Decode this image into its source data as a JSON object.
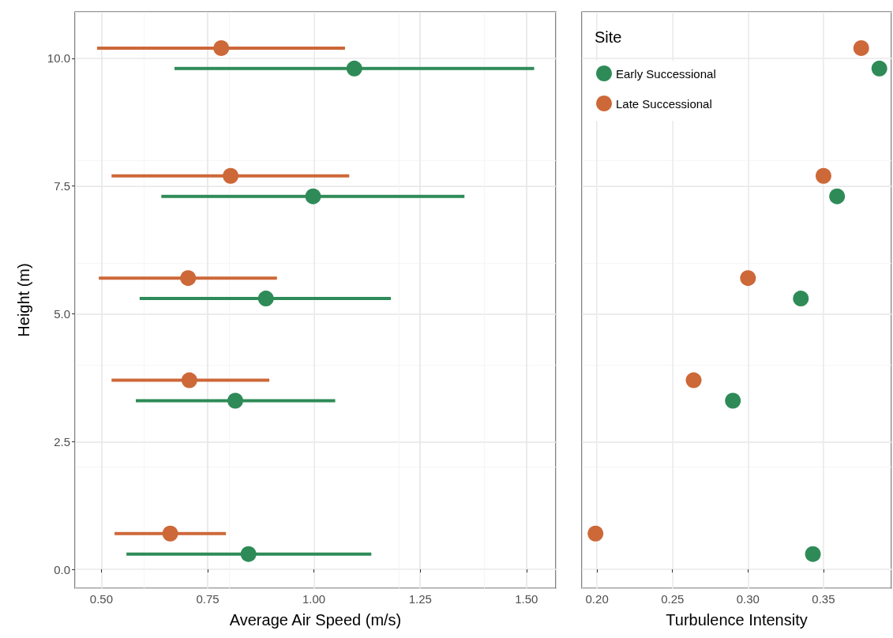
{
  "chart_data": [
    {
      "type": "scatter",
      "xlabel": "Average Air Speed (m/s)",
      "ylabel": "Height (m)",
      "xlim": [
        0.438,
        1.569
      ],
      "xticks": [
        {
          "value": 0.5,
          "label": "0.50"
        },
        {
          "value": 0.75,
          "label": "0.75"
        },
        {
          "value": 1,
          "label": "1.00"
        },
        {
          "value": 1.25,
          "label": "1.25"
        },
        {
          "value": 1.5,
          "label": "1.50"
        }
      ],
      "ylim": [
        -0.37,
        10.91
      ],
      "yticks": [
        {
          "value": 0,
          "label": "0.0"
        },
        {
          "value": 2.5,
          "label": "2.5"
        },
        {
          "value": 5,
          "label": "5.0"
        },
        {
          "value": 7.5,
          "label": "7.5"
        },
        {
          "value": 10,
          "label": "10.0"
        }
      ],
      "grid": true,
      "legend": false,
      "marker": "circle",
      "series": [
        {
          "color": "#2e8b57",
          "x": [
            0.846,
            0.815,
            0.887,
            0.998,
            1.095
          ],
          "values": [
            0.3,
            3.3,
            5.3,
            7.3,
            9.8
          ],
          "xerrors": [
            [
              0.559,
              1.135
            ],
            [
              0.581,
              1.05
            ],
            [
              0.59,
              1.181
            ],
            [
              0.641,
              1.354
            ],
            [
              0.672,
              1.518
            ]
          ]
        },
        {
          "color": "#cd6838",
          "x": [
            0.662,
            0.707,
            0.704,
            0.804,
            0.782
          ],
          "values": [
            0.7,
            3.7,
            5.7,
            7.7,
            10.2
          ],
          "xerrors": [
            [
              0.531,
              0.793
            ],
            [
              0.524,
              0.895
            ],
            [
              0.494,
              0.913
            ],
            [
              0.524,
              1.083
            ],
            [
              0.49,
              1.073
            ]
          ]
        }
      ]
    },
    {
      "type": "scatter",
      "xlabel": "Turbulence Intensity",
      "legend_title": "Site",
      "xlim": [
        0.19,
        0.395
      ],
      "xticks": [
        {
          "value": 0.2,
          "label": "0.20"
        },
        {
          "value": 0.25,
          "label": "0.25"
        },
        {
          "value": 0.3,
          "label": "0.30"
        },
        {
          "value": 0.35,
          "label": "0.35"
        }
      ],
      "ylim": [
        -0.37,
        10.91
      ],
      "yticks": [
        0,
        2.5,
        5,
        7.5,
        10
      ],
      "tick_labels": "x",
      "grid": true,
      "legend": "top left",
      "marker": "circle",
      "series": [
        {
          "name": "Early Successional",
          "color": "#2e8b57",
          "x": [
            0.343,
            0.29,
            0.335,
            0.359,
            0.387
          ],
          "values": [
            0.3,
            3.3,
            5.3,
            7.3,
            9.8
          ]
        },
        {
          "name": "Late Successional",
          "color": "#cd6838",
          "x": [
            0.199,
            0.264,
            0.3,
            0.35,
            0.375
          ],
          "values": [
            0.7,
            3.7,
            5.7,
            7.7,
            10.2
          ]
        }
      ]
    }
  ]
}
